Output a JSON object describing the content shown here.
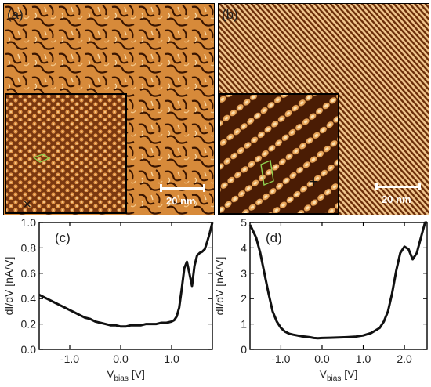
{
  "panels": {
    "a": {
      "label": "(a)",
      "scalebar": "20 nm"
    },
    "b": {
      "label": "(b)",
      "scalebar": "20 nm"
    },
    "c": {
      "label": "(c)"
    },
    "d": {
      "label": "(d)"
    }
  },
  "inset_marks": {
    "a": "×",
    "b": "+"
  },
  "colors": {
    "stm_dark": "#3a1500",
    "stm_mid": "#b8621c",
    "stm_light": "#f7d9a8",
    "curve": "#111111",
    "cell_outline": "#8fd14f"
  },
  "chart_data": [
    {
      "type": "line",
      "panel": "(c)",
      "xlabel": "V_bias [V]",
      "ylabel": "dI/dV [nA/V]",
      "xlim": [
        -1.6,
        1.8
      ],
      "ylim": [
        0.0,
        1.0
      ],
      "xticks": [
        -1.0,
        0.0,
        1.0
      ],
      "xtick_labels": [
        "-1.0",
        "0.0",
        "1.0"
      ],
      "yticks": [
        0.0,
        0.2,
        0.4,
        0.6,
        0.8,
        1.0
      ],
      "ytick_labels": [
        "0.0",
        "0.2",
        "0.4",
        "0.6",
        "0.8",
        "1.0"
      ],
      "series": [
        {
          "x": [
            -1.6,
            -1.5,
            -1.4,
            -1.3,
            -1.2,
            -1.1,
            -1.0,
            -0.9,
            -0.8,
            -0.7,
            -0.6,
            -0.5,
            -0.4,
            -0.3,
            -0.2,
            -0.1,
            0.0,
            0.1,
            0.2,
            0.3,
            0.4,
            0.5,
            0.6,
            0.7,
            0.8,
            0.9,
            1.0,
            1.05,
            1.1,
            1.15,
            1.2,
            1.25,
            1.3,
            1.35,
            1.4,
            1.45,
            1.5,
            1.55,
            1.6,
            1.65,
            1.7,
            1.75,
            1.8
          ],
          "y": [
            0.43,
            0.41,
            0.39,
            0.37,
            0.35,
            0.33,
            0.31,
            0.29,
            0.27,
            0.25,
            0.24,
            0.22,
            0.21,
            0.2,
            0.19,
            0.19,
            0.18,
            0.18,
            0.19,
            0.19,
            0.19,
            0.2,
            0.2,
            0.2,
            0.21,
            0.21,
            0.22,
            0.23,
            0.26,
            0.33,
            0.48,
            0.64,
            0.69,
            0.6,
            0.5,
            0.66,
            0.74,
            0.76,
            0.77,
            0.79,
            0.85,
            0.92,
            1.0
          ]
        }
      ]
    },
    {
      "type": "line",
      "panel": "(d)",
      "xlabel": "V_bias [V]",
      "ylabel": "dI/dV [nA/V]",
      "xlim": [
        -1.75,
        2.55
      ],
      "ylim": [
        0,
        5
      ],
      "xticks": [
        -1.0,
        0.0,
        1.0,
        2.0
      ],
      "xtick_labels": [
        "-1.0",
        "0.0",
        "1.0",
        "2.0"
      ],
      "yticks": [
        0,
        1,
        2,
        3,
        4,
        5
      ],
      "ytick_labels": [
        "0",
        "1",
        "2",
        "3",
        "4",
        "5"
      ],
      "series": [
        {
          "x": [
            -1.75,
            -1.7,
            -1.6,
            -1.5,
            -1.4,
            -1.3,
            -1.2,
            -1.1,
            -1.0,
            -0.9,
            -0.8,
            -0.7,
            -0.6,
            -0.5,
            -0.4,
            -0.3,
            -0.2,
            -0.1,
            0.0,
            0.2,
            0.4,
            0.6,
            0.8,
            1.0,
            1.2,
            1.4,
            1.5,
            1.6,
            1.7,
            1.8,
            1.9,
            2.0,
            2.1,
            2.2,
            2.3,
            2.4,
            2.5,
            2.55
          ],
          "y": [
            4.9,
            4.75,
            4.4,
            3.8,
            3.0,
            2.2,
            1.5,
            1.1,
            0.85,
            0.7,
            0.62,
            0.58,
            0.55,
            0.52,
            0.5,
            0.48,
            0.45,
            0.44,
            0.45,
            0.46,
            0.47,
            0.48,
            0.5,
            0.55,
            0.65,
            0.85,
            1.1,
            1.5,
            2.2,
            3.1,
            3.8,
            4.05,
            3.95,
            3.55,
            3.8,
            4.4,
            5.0,
            5.0
          ]
        }
      ]
    }
  ]
}
